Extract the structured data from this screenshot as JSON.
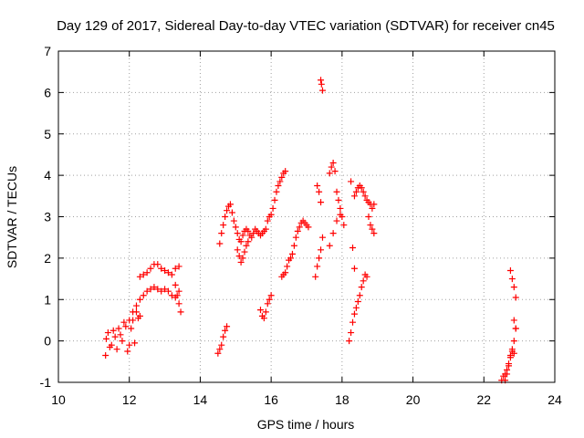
{
  "chart_data": {
    "type": "scatter",
    "title": "Day 129 of 2017, Sidereal Day-to-day VTEC variation (SDTVAR) for receiver cn45",
    "xlabel": "GPS time / hours",
    "ylabel": "SDTVAR / TECUs",
    "xlim": [
      10,
      24
    ],
    "ylim": [
      -1,
      7
    ],
    "x_ticks": [
      10,
      12,
      14,
      16,
      18,
      20,
      22,
      24
    ],
    "y_ticks": [
      -1,
      0,
      1,
      2,
      3,
      4,
      5,
      6,
      7
    ],
    "grid": true,
    "marker": "+",
    "marker_color": "#ff0000",
    "segments": [
      {
        "x": [
          11.33,
          11.4,
          11.5,
          11.6,
          11.7,
          11.8,
          11.9,
          12.0,
          12.1,
          12.2,
          12.3
        ],
        "y": [
          -0.35,
          0.2,
          -0.1,
          0.1,
          0.3,
          0.0,
          0.35,
          -0.1,
          0.5,
          0.7,
          0.6
        ]
      },
      {
        "x": [
          11.35,
          11.45,
          11.55,
          11.65,
          11.75,
          11.85,
          11.95,
          12.05,
          12.15,
          12.25
        ],
        "y": [
          0.05,
          -0.15,
          0.25,
          -0.2,
          0.15,
          0.45,
          -0.25,
          0.3,
          -0.05,
          0.55
        ]
      },
      {
        "x": [
          12.0,
          12.1,
          12.2,
          12.3,
          12.4,
          12.5,
          12.6,
          12.7,
          12.8,
          12.9,
          13.0,
          13.1,
          13.2,
          13.3,
          13.4
        ],
        "y": [
          0.5,
          0.7,
          0.85,
          1.0,
          1.1,
          1.2,
          1.25,
          1.3,
          1.25,
          1.2,
          1.25,
          1.2,
          1.1,
          1.05,
          1.2
        ]
      },
      {
        "x": [
          12.3,
          12.4,
          12.5,
          12.6,
          12.7,
          12.8,
          12.9,
          13.0,
          13.1,
          13.2,
          13.3,
          13.4
        ],
        "y": [
          1.55,
          1.6,
          1.65,
          1.75,
          1.85,
          1.85,
          1.75,
          1.7,
          1.65,
          1.6,
          1.75,
          1.8
        ]
      },
      {
        "x": [
          13.3,
          13.35,
          13.4,
          13.45
        ],
        "y": [
          1.35,
          1.1,
          0.9,
          0.7
        ]
      },
      {
        "x": [
          14.5,
          14.55,
          14.6,
          14.65,
          14.7,
          14.75
        ],
        "y": [
          -0.3,
          -0.2,
          -0.1,
          0.1,
          0.25,
          0.35
        ]
      },
      {
        "x": [
          14.55,
          14.6,
          14.65,
          14.7,
          14.75,
          14.8,
          14.85,
          14.9,
          14.95,
          15.0,
          15.05,
          15.1,
          15.15,
          15.2,
          15.25,
          15.3,
          15.35,
          15.4,
          15.45,
          15.5,
          15.55,
          15.6,
          15.65,
          15.7,
          15.75,
          15.8
        ],
        "y": [
          2.35,
          2.6,
          2.8,
          3.0,
          3.15,
          3.25,
          3.3,
          3.1,
          2.9,
          2.75,
          2.6,
          2.45,
          2.4,
          2.55,
          2.65,
          2.7,
          2.65,
          2.55,
          2.5,
          2.6,
          2.7,
          2.65,
          2.6,
          2.55,
          2.6,
          2.65
        ]
      },
      {
        "x": [
          15.05,
          15.1,
          15.15,
          15.2,
          15.25,
          15.3,
          15.35
        ],
        "y": [
          2.2,
          2.05,
          1.9,
          2.0,
          2.15,
          2.3,
          2.4
        ]
      },
      {
        "x": [
          15.7,
          15.75,
          15.8,
          15.85,
          15.9,
          15.95,
          16.0
        ],
        "y": [
          0.75,
          0.6,
          0.55,
          0.7,
          0.9,
          1.0,
          1.1
        ]
      },
      {
        "x": [
          15.85,
          15.9,
          15.95,
          16.0,
          16.05,
          16.1,
          16.15,
          16.2,
          16.25,
          16.3,
          16.35,
          16.4
        ],
        "y": [
          2.7,
          2.9,
          3.0,
          3.05,
          3.2,
          3.4,
          3.6,
          3.75,
          3.85,
          3.95,
          4.05,
          4.1
        ]
      },
      {
        "x": [
          16.3,
          16.35,
          16.4,
          16.45,
          16.5,
          16.55,
          16.6,
          16.65,
          16.7,
          16.75,
          16.8,
          16.85,
          16.9,
          16.95,
          17.0,
          17.05
        ],
        "y": [
          1.55,
          1.6,
          1.65,
          1.8,
          1.95,
          2.0,
          2.1,
          2.3,
          2.5,
          2.65,
          2.75,
          2.85,
          2.9,
          2.85,
          2.8,
          2.75
        ]
      },
      {
        "x": [
          17.25,
          17.3,
          17.35,
          17.4,
          17.45
        ],
        "y": [
          1.55,
          1.8,
          2.0,
          2.2,
          2.5
        ]
      },
      {
        "x": [
          17.3,
          17.35,
          17.4
        ],
        "y": [
          3.75,
          3.6,
          3.35
        ]
      },
      {
        "x": [
          17.4,
          17.42,
          17.45
        ],
        "y": [
          6.3,
          6.2,
          6.05
        ]
      },
      {
        "x": [
          17.65,
          17.7,
          17.75,
          17.8,
          17.85,
          17.9,
          17.95,
          18.0,
          18.05
        ],
        "y": [
          4.05,
          4.2,
          4.3,
          4.1,
          3.6,
          3.4,
          3.2,
          3.0,
          2.8
        ]
      },
      {
        "x": [
          17.65,
          17.75,
          17.85,
          17.95
        ],
        "y": [
          2.3,
          2.6,
          2.9,
          3.05
        ]
      },
      {
        "x": [
          18.2,
          18.25,
          18.3,
          18.35,
          18.4,
          18.45,
          18.5,
          18.55,
          18.6,
          18.65,
          18.7
        ],
        "y": [
          0.0,
          0.2,
          0.45,
          0.65,
          0.8,
          0.95,
          1.1,
          1.3,
          1.45,
          1.6,
          1.55
        ]
      },
      {
        "x": [
          18.25,
          18.3,
          18.35
        ],
        "y": [
          3.85,
          2.25,
          1.75
        ]
      },
      {
        "x": [
          18.35,
          18.4,
          18.45,
          18.5,
          18.55,
          18.6,
          18.65,
          18.7,
          18.75,
          18.8,
          18.85,
          18.9
        ],
        "y": [
          3.5,
          3.6,
          3.7,
          3.75,
          3.7,
          3.6,
          3.5,
          3.4,
          3.35,
          3.3,
          3.2,
          3.3
        ]
      },
      {
        "x": [
          18.75,
          18.8,
          18.85,
          18.9
        ],
        "y": [
          3.0,
          2.8,
          2.7,
          2.6
        ]
      },
      {
        "x": [
          22.5,
          22.55,
          22.6,
          22.65,
          22.7,
          22.75,
          22.8,
          22.85,
          22.9
        ],
        "y": [
          -0.95,
          -0.85,
          -0.8,
          -0.7,
          -0.55,
          -0.35,
          -0.2,
          0.0,
          0.3
        ]
      },
      {
        "x": [
          22.6,
          22.65,
          22.7,
          22.75,
          22.8,
          22.85
        ],
        "y": [
          -0.95,
          -0.8,
          -0.6,
          -0.4,
          -0.25,
          -0.3
        ]
      },
      {
        "x": [
          22.75,
          22.8,
          22.85,
          22.9
        ],
        "y": [
          1.7,
          1.5,
          1.3,
          1.05
        ]
      },
      {
        "x": [
          22.85,
          22.9
        ],
        "y": [
          0.5,
          0.3
        ]
      }
    ]
  }
}
